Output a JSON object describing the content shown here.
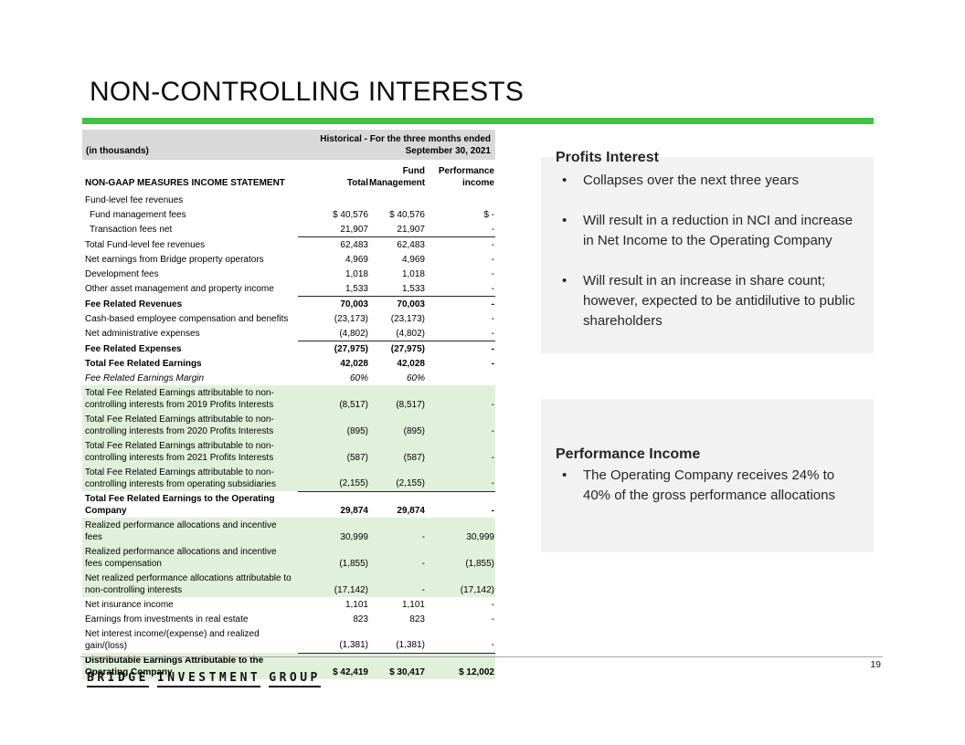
{
  "slide": {
    "title": "NON-CONTROLLING INTERESTS",
    "page_number": "19"
  },
  "colors": {
    "accent_green": "#3ec43e",
    "row_highlight_green": "#e1f0da",
    "table_header_gray": "#d9d9d9",
    "note_box_gray": "#f2f2f2"
  },
  "table": {
    "units_note": "(in thousands)",
    "period_note": "Historical - For the three months ended\nSeptember 30, 2021",
    "col_header_label": "NON-GAAP MEASURES INCOME STATEMENT",
    "columns": [
      "Total",
      "Fund\nManagement",
      "Performance\nincome"
    ],
    "rows": [
      {
        "label": "Fund-level fee revenues",
        "total": "",
        "fund": "",
        "perf": ""
      },
      {
        "label": "Fund management fees",
        "total": "$ 40,576",
        "fund": "$ 40,576",
        "perf": "$ -",
        "indent": true
      },
      {
        "label": "Transaction fees net",
        "total": "21,907",
        "fund": "21,907",
        "perf": "-",
        "indent": true
      },
      {
        "label": "Total Fund-level fee revenues",
        "total": "62,483",
        "fund": "62,483",
        "perf": "-",
        "topline": true
      },
      {
        "label": "Net earnings from Bridge property operators",
        "total": "4,969",
        "fund": "4,969",
        "perf": "-"
      },
      {
        "label": "Development fees",
        "total": "1,018",
        "fund": "1,018",
        "perf": "-"
      },
      {
        "label": "Other asset management and property income",
        "total": "1,533",
        "fund": "1,533",
        "perf": "-"
      },
      {
        "label": "Fee Related Revenues",
        "total": "70,003",
        "fund": "70,003",
        "perf": "-",
        "bold": true,
        "topline": true
      },
      {
        "label": "Cash-based employee compensation and benefits",
        "total": "(23,173)",
        "fund": "(23,173)",
        "perf": "-"
      },
      {
        "label": "Net administrative expenses",
        "total": "(4,802)",
        "fund": "(4,802)",
        "perf": "-"
      },
      {
        "label": "Fee Related Expenses",
        "total": "(27,975)",
        "fund": "(27,975)",
        "perf": "-",
        "bold": true,
        "topline": true
      },
      {
        "label": "Total Fee Related Earnings",
        "total": "42,028",
        "fund": "42,028",
        "perf": "-",
        "bold": true
      },
      {
        "label": "Fee Related Earnings Margin",
        "total": "60%",
        "fund": "60%",
        "perf": "",
        "italic": true
      },
      {
        "label": "Total Fee Related Earnings attributable to non-controlling interests from 2019 Profits Interests",
        "total": "(8,517)",
        "fund": "(8,517)",
        "perf": "-",
        "green": true
      },
      {
        "label": "Total Fee Related Earnings attributable to non-controlling interests from 2020 Profits Interests",
        "total": "(895)",
        "fund": "(895)",
        "perf": "-",
        "green": true
      },
      {
        "label": "Total Fee Related Earnings attributable to non-controlling interests from 2021 Profits Interests",
        "total": "(587)",
        "fund": "(587)",
        "perf": "-",
        "green": true
      },
      {
        "label": "Total Fee Related Earnings attributable to non-controlling interests from operating subsidiaries",
        "total": "(2,155)",
        "fund": "(2,155)",
        "perf": "-",
        "green": true
      },
      {
        "label": "Total Fee Related Earnings to the Operating Company",
        "total": "29,874",
        "fund": "29,874",
        "perf": "-",
        "bold": true,
        "topline": true
      },
      {
        "label": "Realized performance allocations and incentive fees",
        "total": "30,999",
        "fund": "-",
        "perf": "30,999",
        "green": true
      },
      {
        "label": "Realized performance allocations and incentive fees compensation",
        "total": "(1,855)",
        "fund": "-",
        "perf": "(1,855)",
        "green": true
      },
      {
        "label": "Net realized performance allocations attributable to non-controlling interests",
        "total": "(17,142)",
        "fund": "-",
        "perf": "(17,142)",
        "green": true
      },
      {
        "label": "Net insurance income",
        "total": "1,101",
        "fund": "1,101",
        "perf": "-"
      },
      {
        "label": "Earnings from investments in real estate",
        "total": "823",
        "fund": "823",
        "perf": "-"
      },
      {
        "label": "Net interest income/(expense) and realized gain/(loss)",
        "total": "(1,381)",
        "fund": "(1,381)",
        "perf": "-"
      },
      {
        "label": "Distributable Earnings Attributable to the Operating Company",
        "total": "$ 42,419",
        "fund": "$ 30,417",
        "perf": "$ 12,002",
        "bold": true,
        "green": true,
        "topline": true
      }
    ]
  },
  "notes": {
    "boxes": [
      {
        "title": "Profits Interest",
        "bullets": [
          "Collapses over the next three years",
          "Will result in a reduction in NCI and increase in Net Income to the Operating Company",
          "Will result in an increase in share count; however, expected to be antidilutive to public shareholders"
        ]
      },
      {
        "title": "Performance Income",
        "bullets": [
          "The Operating Company receives 24% to 40% of the gross performance allocations"
        ]
      }
    ]
  },
  "footer": {
    "logo_words": [
      "BRIDGE",
      "INVESTMENT",
      "GROUP"
    ]
  }
}
